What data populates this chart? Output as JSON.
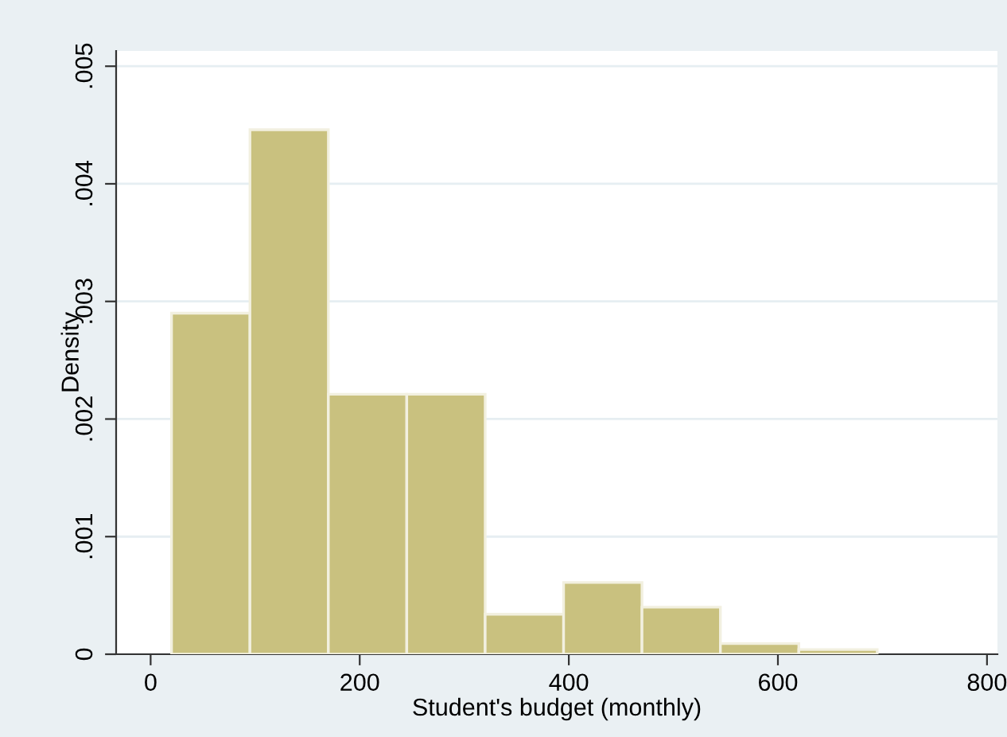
{
  "chart_data": {
    "type": "histogram",
    "xlabel": "Student's budget (monthly)",
    "ylabel": "Density",
    "bins": [
      20,
      95,
      170,
      245,
      320,
      395,
      470,
      545,
      620,
      695
    ],
    "values": [
      0.0029,
      0.00446,
      0.00221,
      0.00221,
      0.00034,
      0.00061,
      0.0004,
      9e-05,
      4e-05
    ],
    "color": "#c9c17f",
    "xlim": [
      -33,
      810
    ],
    "xticks": [
      0,
      200,
      400,
      600,
      800
    ],
    "ylim": [
      0,
      0.00513
    ],
    "yticks": [
      0,
      {
        "value": 0.001,
        "label": ".001"
      },
      {
        "value": 0.002,
        "label": ".002"
      },
      {
        "value": 0.003,
        "label": ".003"
      },
      {
        "value": 0.004,
        "label": ".004"
      },
      {
        "value": 0.005,
        "label": ".005"
      }
    ],
    "grid": "y",
    "legend": false
  }
}
